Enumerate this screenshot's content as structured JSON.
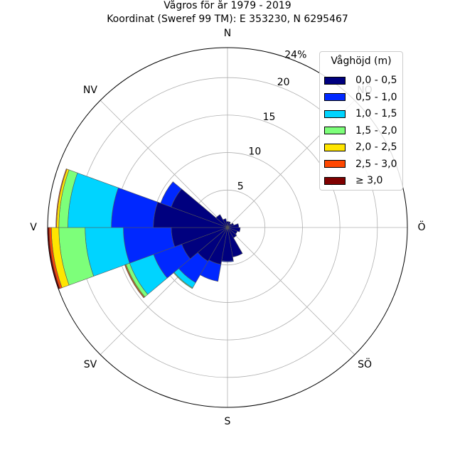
{
  "chart_data": {
    "type": "bar",
    "subtype": "wind-rose",
    "title": "Vågros för år 1979 - 2019",
    "subtitle": "Koordinat (Sweref 99 TM): E 353230, N 6295467",
    "direction_labels": [
      "N",
      "Ö",
      "S",
      "V",
      "NV",
      "SV",
      "SÖ",
      "NÖ"
    ],
    "radial_ticks": [
      5,
      10,
      15,
      20
    ],
    "radial_max_label": "24%",
    "rmax": 24,
    "grid": true,
    "legend": {
      "title": "Våghöjd (m)",
      "placement": "top-right",
      "entries": [
        "0,0 - 0,5",
        "0,5 - 1,0",
        "1,0 - 1,5",
        "1,5 - 2,0",
        "2,0 - 2,5",
        "2,5 - 3,0",
        "≥ 3,0"
      ],
      "colors": [
        "#00007f",
        "#0028ff",
        "#00d4ff",
        "#7dff7a",
        "#ffe500",
        "#ff4700",
        "#7f0000"
      ]
    },
    "sector_width_deg": 20,
    "sectors": [
      {
        "direction_deg": 0,
        "cumulative": [
          0.8,
          0.8,
          0.8,
          0.8,
          0.8,
          0.8,
          0.8
        ]
      },
      {
        "direction_deg": 20,
        "cumulative": [
          0.8,
          0.8,
          0.8,
          0.8,
          0.8,
          0.8,
          0.8
        ]
      },
      {
        "direction_deg": 40,
        "cumulative": [
          0.6,
          0.6,
          0.6,
          0.6,
          0.6,
          0.6,
          0.6
        ]
      },
      {
        "direction_deg": 60,
        "cumulative": [
          0.9,
          0.9,
          0.9,
          0.9,
          0.9,
          0.9,
          0.9
        ]
      },
      {
        "direction_deg": 80,
        "cumulative": [
          1.5,
          1.5,
          1.5,
          1.5,
          1.5,
          1.5,
          1.5
        ]
      },
      {
        "direction_deg": 100,
        "cumulative": [
          1.7,
          1.7,
          1.7,
          1.7,
          1.7,
          1.7,
          1.7
        ]
      },
      {
        "direction_deg": 120,
        "cumulative": [
          1.4,
          1.4,
          1.4,
          1.4,
          1.4,
          1.4,
          1.4
        ]
      },
      {
        "direction_deg": 140,
        "cumulative": [
          1.6,
          1.6,
          1.6,
          1.6,
          1.6,
          1.6,
          1.6
        ]
      },
      {
        "direction_deg": 160,
        "cumulative": [
          4.0,
          4.0,
          4.0,
          4.0,
          4.0,
          4.0,
          4.0
        ]
      },
      {
        "direction_deg": 180,
        "cumulative": [
          4.5,
          4.6,
          4.6,
          4.6,
          4.6,
          4.6,
          4.6
        ]
      },
      {
        "direction_deg": 200,
        "cumulative": [
          5.0,
          7.3,
          7.3,
          7.3,
          7.3,
          7.3,
          7.3
        ]
      },
      {
        "direction_deg": 220,
        "cumulative": [
          5.2,
          8.5,
          9.3,
          9.4,
          9.4,
          9.4,
          9.4
        ]
      },
      {
        "direction_deg": 240,
        "cumulative": [
          6.5,
          10.5,
          13.9,
          14.4,
          14.5,
          14.6,
          14.6
        ]
      },
      {
        "direction_deg": 260,
        "cumulative": [
          7.5,
          13.9,
          19.0,
          22.5,
          23.5,
          23.8,
          24.0
        ]
      },
      {
        "direction_deg": 280,
        "cumulative": [
          9.9,
          15.5,
          21.3,
          22.5,
          22.8,
          22.9,
          22.9
        ]
      },
      {
        "direction_deg": 300,
        "cumulative": [
          8.0,
          9.5,
          9.5,
          9.5,
          9.5,
          9.5,
          9.5
        ]
      },
      {
        "direction_deg": 320,
        "cumulative": [
          2.0,
          2.0,
          2.0,
          2.0,
          2.0,
          2.0,
          2.0
        ]
      },
      {
        "direction_deg": 340,
        "cumulative": [
          1.2,
          1.2,
          1.2,
          1.2,
          1.2,
          1.2,
          1.2
        ]
      }
    ]
  }
}
